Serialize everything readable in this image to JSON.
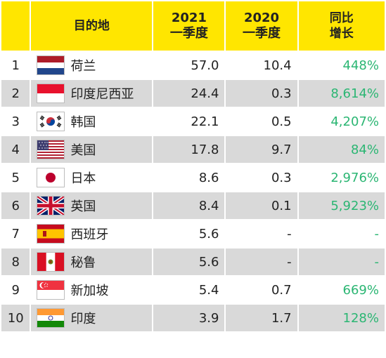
{
  "headers": {
    "rank": "",
    "destination": "目的地",
    "y2021_line1": "2021",
    "y2021_line2": "一季度",
    "y2020_line1": "2020",
    "y2020_line2": "一季度",
    "yoy_line1": "同比",
    "yoy_line2": "增长"
  },
  "colors": {
    "header_bg": "#ffe600",
    "stripe": "#d9d9d9",
    "growth_text": "#2bb673"
  },
  "rows": [
    {
      "rank": "1",
      "name": "荷兰",
      "flag": "netherlands-flag-icon",
      "y2021": "57.0",
      "y2020": "10.4",
      "yoy": "448%"
    },
    {
      "rank": "2",
      "name": "印度尼西亚",
      "flag": "indonesia-flag-icon",
      "y2021": "24.4",
      "y2020": "0.3",
      "yoy": "8,614%"
    },
    {
      "rank": "3",
      "name": "韩国",
      "flag": "south-korea-flag-icon",
      "y2021": "22.1",
      "y2020": "0.5",
      "yoy": "4,207%"
    },
    {
      "rank": "4",
      "name": "美国",
      "flag": "usa-flag-icon",
      "y2021": "17.8",
      "y2020": "9.7",
      "yoy": "84%"
    },
    {
      "rank": "5",
      "name": "日本",
      "flag": "japan-flag-icon",
      "y2021": "8.6",
      "y2020": "0.3",
      "yoy": "2,976%"
    },
    {
      "rank": "6",
      "name": "英国",
      "flag": "uk-flag-icon",
      "y2021": "8.4",
      "y2020": "0.1",
      "yoy": "5,923%"
    },
    {
      "rank": "7",
      "name": "西班牙",
      "flag": "spain-flag-icon",
      "y2021": "5.6",
      "y2020": "-",
      "yoy": "-"
    },
    {
      "rank": "8",
      "name": "秘鲁",
      "flag": "peru-flag-icon",
      "y2021": "5.6",
      "y2020": "-",
      "yoy": "-"
    },
    {
      "rank": "9",
      "name": "新加坡",
      "flag": "singapore-flag-icon",
      "y2021": "5.4",
      "y2020": "0.7",
      "yoy": "669%"
    },
    {
      "rank": "10",
      "name": "印度",
      "flag": "india-flag-icon",
      "y2021": "3.9",
      "y2020": "1.7",
      "yoy": "128%"
    }
  ]
}
